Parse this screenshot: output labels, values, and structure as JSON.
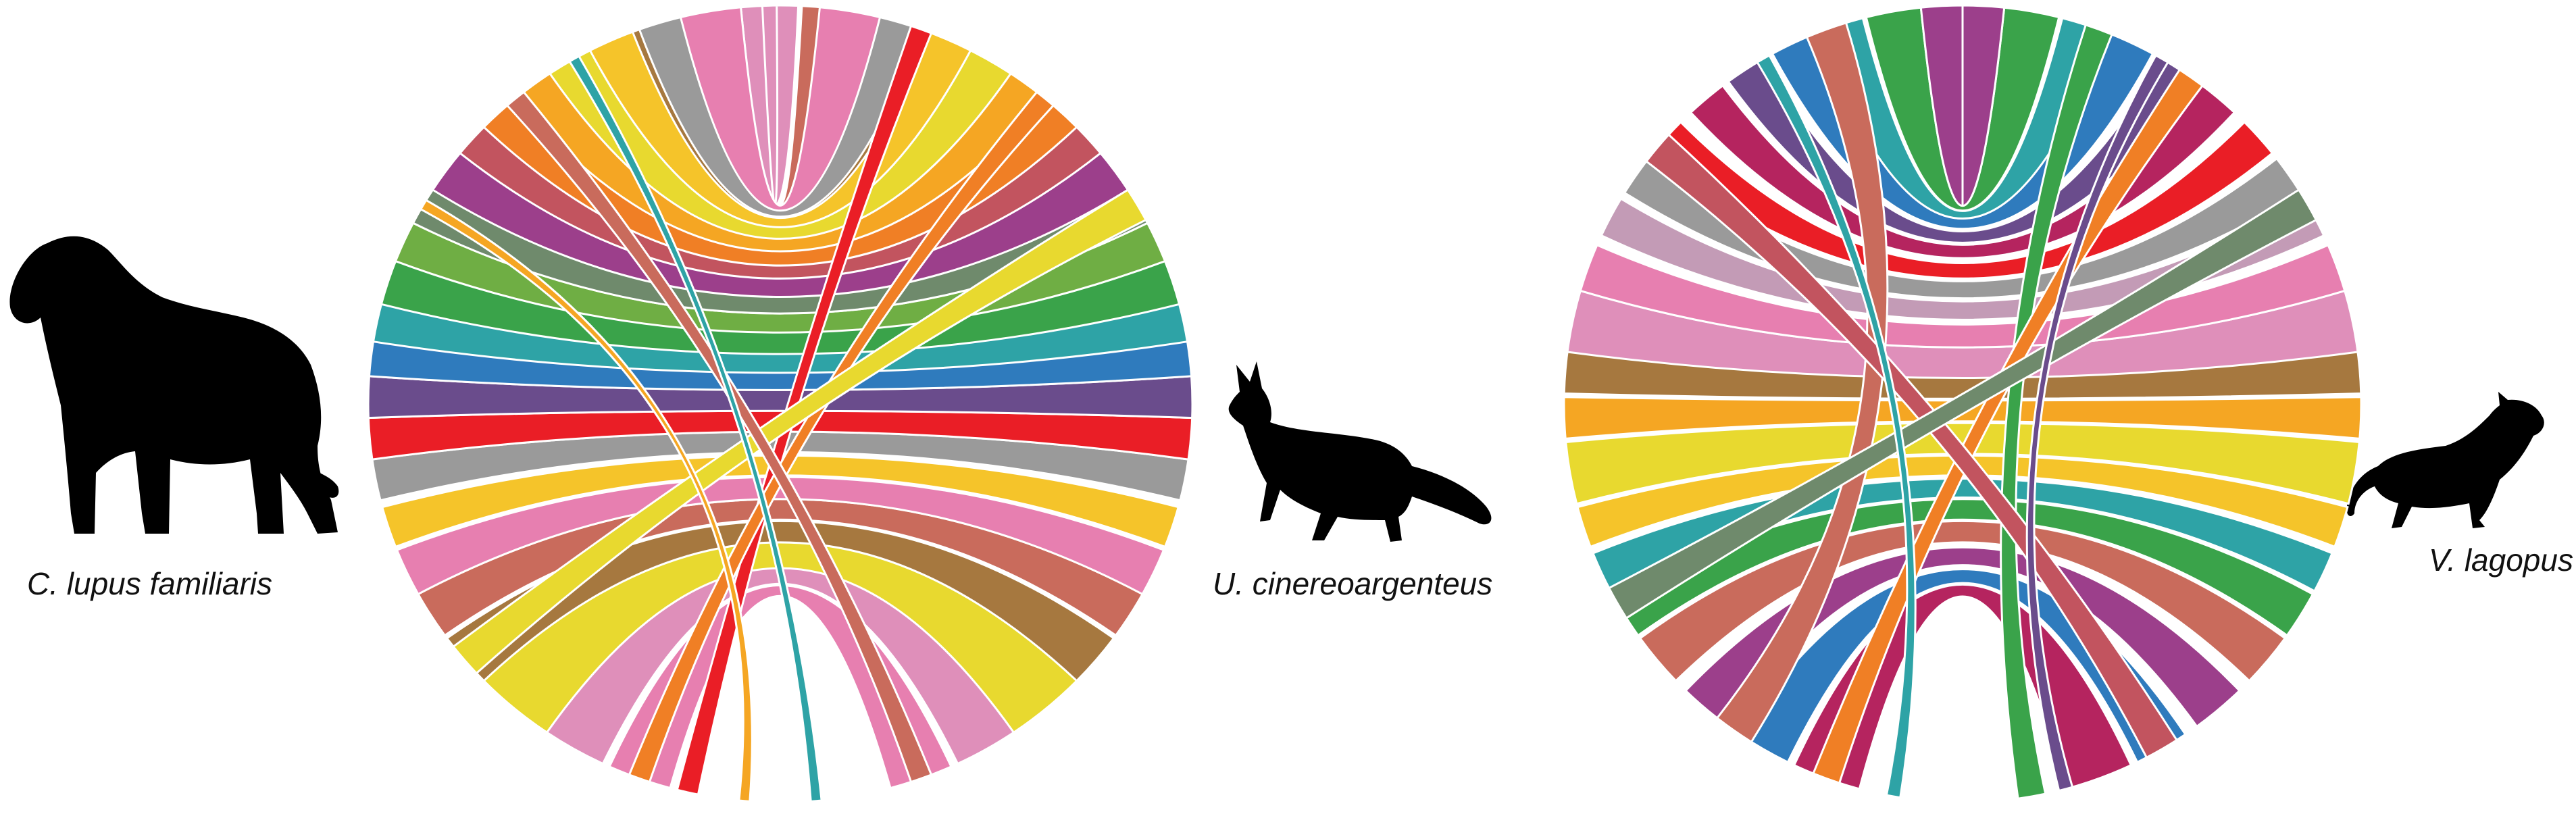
{
  "species": [
    {
      "id": "dog",
      "label": "C. lupus familiaris",
      "silhouette": "dog-silhouette"
    },
    {
      "id": "gray_fox",
      "label": "U. cinereoargenteus",
      "silhouette": "fox-silhouette"
    },
    {
      "id": "arctic_fox",
      "label": "V. lagopus",
      "silhouette": "arctic-fox-silhouette"
    }
  ],
  "palette": [
    "#e8d92f",
    "#f5c42a",
    "#f5a623",
    "#f07f25",
    "#ea1e26",
    "#c2545f",
    "#b5245f",
    "#9c3f8b",
    "#6a4c8c",
    "#2f7bbd",
    "#2ea3a6",
    "#3aa34a",
    "#6fae44",
    "#a6783f",
    "#b8632a",
    "#c96b5c",
    "#e77fb0",
    "#df8fba",
    "#9a9a9a",
    "#c39bb6"
  ],
  "circos_plots": [
    {
      "name": "circos-left",
      "ribbons": [
        {
          "a": 140,
          "b": 220,
          "color": "#e8d92f",
          "w": 16
        },
        {
          "a": 150,
          "b": 210,
          "color": "#df8fba",
          "w": 9
        },
        {
          "a": 160,
          "b": 200,
          "color": "#e77fb0",
          "w": 9
        },
        {
          "a": 130,
          "b": 230,
          "color": "#a6783f",
          "w": 8
        },
        {
          "a": 122,
          "b": 238,
          "color": "#c96b5c",
          "w": 7
        },
        {
          "a": 115,
          "b": 245,
          "color": "#e77fb0",
          "w": 7
        },
        {
          "a": 108,
          "b": 252,
          "color": "#f5c42a",
          "w": 6
        },
        {
          "a": 101,
          "b": 259,
          "color": "#9a9a9a",
          "w": 6
        },
        {
          "a": 95,
          "b": 265,
          "color": "#ea1e26",
          "w": 6
        },
        {
          "a": 89,
          "b": 271,
          "color": "#6a4c8c",
          "w": 6
        },
        {
          "a": 83,
          "b": 277,
          "color": "#2f7bbd",
          "w": 6
        },
        {
          "a": 78,
          "b": 282,
          "color": "#2ea3a6",
          "w": 6
        },
        {
          "a": 72,
          "b": 288,
          "color": "#3aa34a",
          "w": 7
        },
        {
          "a": 66,
          "b": 294,
          "color": "#6fae44",
          "w": 6
        },
        {
          "a": 60,
          "b": 300,
          "color": "#6f8a6c",
          "w": 6
        },
        {
          "a": 54,
          "b": 306,
          "color": "#9c3f8b",
          "w": 7
        },
        {
          "a": 48,
          "b": 312,
          "color": "#c2545f",
          "w": 6
        },
        {
          "a": 42,
          "b": 318,
          "color": "#f07f25",
          "w": 8
        },
        {
          "a": 36,
          "b": 324,
          "color": "#f5a623",
          "w": 8
        },
        {
          "a": 30,
          "b": 330,
          "color": "#e8d92f",
          "w": 8
        },
        {
          "a": 24,
          "b": 336,
          "color": "#f5c42a",
          "w": 7
        },
        {
          "a": 18,
          "b": 342,
          "color": "#a6783f",
          "w": 6
        },
        {
          "a": 12,
          "b": 348,
          "color": "#b8632a",
          "w": 6
        },
        {
          "a": 6,
          "b": 354,
          "color": "#c96b5c",
          "w": 6
        },
        {
          "a": 0,
          "b": 357,
          "color": "#df8fba",
          "w": 5
        },
        {
          "a": 350,
          "b": 10,
          "color": "#e77fb0",
          "w": 9
        },
        {
          "a": 343,
          "b": 17,
          "color": "#9a9a9a",
          "w": 6
        },
        {
          "a": 193,
          "b": 20,
          "color": "#ea1e26",
          "w": 3
        },
        {
          "a": 200,
          "b": 40,
          "color": "#f07f25",
          "w": 3
        },
        {
          "a": 230,
          "b": 60,
          "color": "#e8d92f",
          "w": 5
        },
        {
          "a": 160,
          "b": 320,
          "color": "#c96b5c",
          "w": 3
        },
        {
          "a": 175,
          "b": 330,
          "color": "#2ea3a6",
          "w": 1.5
        },
        {
          "a": 185,
          "b": 300,
          "color": "#f5a623",
          "w": 1.5
        }
      ]
    },
    {
      "name": "circos-right",
      "ribbons": [
        {
          "a": 160,
          "b": 200,
          "color": "#b5245f",
          "w": 10
        },
        {
          "a": 150,
          "b": 210,
          "color": "#2f7bbd",
          "w": 8
        },
        {
          "a": 140,
          "b": 220,
          "color": "#9c3f8b",
          "w": 8
        },
        {
          "a": 130,
          "b": 230,
          "color": "#c96b5c",
          "w": 8
        },
        {
          "a": 122,
          "b": 238,
          "color": "#3aa34a",
          "w": 7
        },
        {
          "a": 115,
          "b": 245,
          "color": "#2ea3a6",
          "w": 6
        },
        {
          "a": 108,
          "b": 252,
          "color": "#f5c42a",
          "w": 6
        },
        {
          "a": 100,
          "b": 260,
          "color": "#e8d92f",
          "w": 9
        },
        {
          "a": 92,
          "b": 268,
          "color": "#f5a623",
          "w": 6
        },
        {
          "a": 85,
          "b": 275,
          "color": "#a6783f",
          "w": 7
        },
        {
          "a": 78,
          "b": 282,
          "color": "#df8fba",
          "w": 9
        },
        {
          "a": 70,
          "b": 290,
          "color": "#e77fb0",
          "w": 7
        },
        {
          "a": 62,
          "b": 298,
          "color": "#c39bb6",
          "w": 6
        },
        {
          "a": 55,
          "b": 305,
          "color": "#9a9a9a",
          "w": 6
        },
        {
          "a": 48,
          "b": 312,
          "color": "#ea1e26",
          "w": 6
        },
        {
          "a": 40,
          "b": 320,
          "color": "#b5245f",
          "w": 6
        },
        {
          "a": 33,
          "b": 327,
          "color": "#6a4c8c",
          "w": 6
        },
        {
          "a": 25,
          "b": 335,
          "color": "#2f7bbd",
          "w": 7
        },
        {
          "a": 18,
          "b": 342,
          "color": "#2ea3a6",
          "w": 7
        },
        {
          "a": 10,
          "b": 350,
          "color": "#3aa34a",
          "w": 8
        },
        {
          "a": 3,
          "b": 357,
          "color": "#9c3f8b",
          "w": 6
        },
        {
          "a": 170,
          "b": 20,
          "color": "#3aa34a",
          "w": 4
        },
        {
          "a": 200,
          "b": 35,
          "color": "#f07f25",
          "w": 4
        },
        {
          "a": 215,
          "b": 340,
          "color": "#c96b5c",
          "w": 6
        },
        {
          "a": 310,
          "b": 150,
          "color": "#c2545f",
          "w": 5
        },
        {
          "a": 60,
          "b": 240,
          "color": "#6f8a6c",
          "w": 5
        },
        {
          "a": 190,
          "b": 330,
          "color": "#2ea3a6",
          "w": 2
        },
        {
          "a": 165,
          "b": 30,
          "color": "#6a4c8c",
          "w": 2
        }
      ]
    }
  ]
}
